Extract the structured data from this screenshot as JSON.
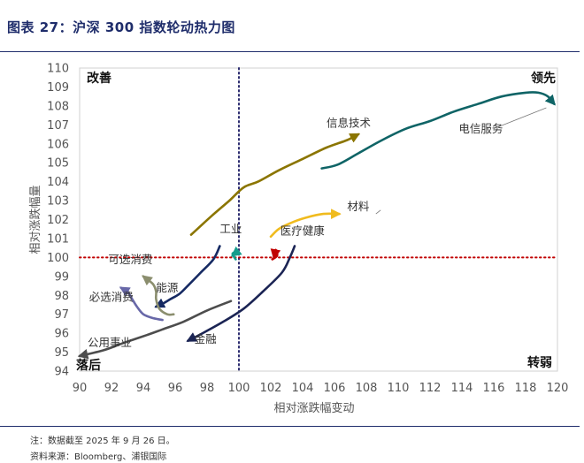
{
  "figure": {
    "title": "图表 27：沪深 300 指数轮动热力图",
    "note": "注：数据截至 2025 年 9 月 26 日。",
    "source": "资料来源：Bloomberg、浦银国际"
  },
  "colors": {
    "title": "#1f2d6b",
    "reference_line": "#c00000",
    "divider": "#2a2a6e",
    "axis_text": "#555555"
  },
  "chart_data": {
    "type": "scatter",
    "title": "",
    "xlabel": "相对涨跌幅变动",
    "ylabel": "相对涨跌幅量",
    "xlim": [
      90,
      120
    ],
    "ylim": [
      94,
      110
    ],
    "xticks": [
      "90",
      "92",
      "94",
      "96",
      "98",
      "100",
      "102",
      "104",
      "106",
      "108",
      "110",
      "112",
      "114",
      "116",
      "118",
      "120"
    ],
    "yticks": [
      "94",
      "95",
      "96",
      "97",
      "98",
      "99",
      "100",
      "101",
      "102",
      "103",
      "104",
      "105",
      "106",
      "107",
      "108",
      "109",
      "110"
    ],
    "vline_x": 100,
    "hline_y": 100,
    "quadrants": [
      {
        "label": "改善",
        "position": "top-left"
      },
      {
        "label": "领先",
        "position": "top-right"
      },
      {
        "label": "落后",
        "position": "bottom-left"
      },
      {
        "label": "转弱",
        "position": "bottom-right"
      }
    ],
    "series": [
      {
        "name": "电信服务",
        "color": "#0f6466",
        "label_at": [
          113.8,
          106.6
        ],
        "x": [
          105.2,
          106.2,
          107.5,
          109.0,
          110.5,
          112.0,
          113.5,
          115.0,
          116.5,
          118.0,
          118.8,
          119.4,
          119.8
        ],
        "y": [
          104.7,
          104.9,
          105.5,
          106.2,
          106.8,
          107.2,
          107.7,
          108.1,
          108.5,
          108.7,
          108.7,
          108.5,
          108.1
        ]
      },
      {
        "name": "信息技术",
        "color": "#8b7500",
        "label_at": [
          105.5,
          106.9
        ],
        "x": [
          97.0,
          98.3,
          99.4,
          100.3,
          101.2,
          102.5,
          104.0,
          105.5,
          106.8,
          107.5
        ],
        "y": [
          101.2,
          102.2,
          103.0,
          103.7,
          104.0,
          104.6,
          105.2,
          105.8,
          106.2,
          106.5
        ]
      },
      {
        "name": "材料",
        "color": "#f0bb1e",
        "label_at": [
          106.8,
          102.5
        ],
        "x": [
          102.0,
          102.5,
          103.2,
          104.2,
          105.3,
          106.3
        ],
        "y": [
          101.1,
          101.5,
          101.8,
          102.1,
          102.3,
          102.3
        ]
      },
      {
        "name": "医疗健康",
        "color": "#c00000",
        "label_at": [
          102.6,
          101.2
        ],
        "x": [
          102.1,
          102.4,
          102.3,
          102.2
        ],
        "y": [
          99.9,
          100.1,
          100.4,
          100.0
        ]
      },
      {
        "name": "工业",
        "color": "#149c8c",
        "label_at": [
          98.8,
          101.3
        ],
        "x": [
          99.8,
          99.6,
          99.9,
          99.6
        ],
        "y": [
          99.9,
          100.2,
          100.3,
          100.1
        ]
      },
      {
        "name": "金融",
        "color": "#1b2454",
        "label_at": [
          97.2,
          95.5
        ],
        "x": [
          103.5,
          103.2,
          102.7,
          101.5,
          100.3,
          99.0,
          97.5,
          96.8
        ],
        "y": [
          100.6,
          100.0,
          99.2,
          98.2,
          97.3,
          96.6,
          95.9,
          95.6
        ]
      },
      {
        "name": "可选消费",
        "color": "#162a63",
        "label_at": [
          91.8,
          99.7
        ],
        "x": [
          98.8,
          98.4,
          97.6,
          96.9,
          96.3,
          95.7,
          95.3,
          95.0,
          94.8
        ],
        "y": [
          100.6,
          99.9,
          99.2,
          98.6,
          98.1,
          97.8,
          97.6,
          97.5,
          97.4
        ]
      },
      {
        "name": "能源",
        "color": "#8b8e6e",
        "label_at": [
          94.8,
          98.2
        ],
        "x": [
          95.9,
          95.5,
          95.0,
          94.8,
          94.8,
          94.6,
          94.0
        ],
        "y": [
          97.0,
          97.0,
          97.3,
          97.8,
          98.2,
          98.6,
          99.0
        ]
      },
      {
        "name": "必选消费",
        "color": "#6868a8",
        "label_at": [
          90.6,
          97.7
        ],
        "x": [
          95.2,
          94.6,
          94.0,
          93.6,
          93.3,
          93.0,
          92.6
        ],
        "y": [
          96.7,
          96.8,
          97.0,
          97.4,
          97.8,
          98.2,
          98.4
        ]
      },
      {
        "name": "公用事业",
        "color": "#4d4d4d",
        "label_at": [
          90.5,
          95.3
        ],
        "x": [
          99.5,
          98.0,
          96.5,
          95.2,
          94.2,
          92.8,
          91.5,
          90.0
        ],
        "y": [
          97.7,
          97.2,
          96.6,
          96.2,
          95.9,
          95.5,
          95.1,
          94.8
        ]
      }
    ]
  }
}
